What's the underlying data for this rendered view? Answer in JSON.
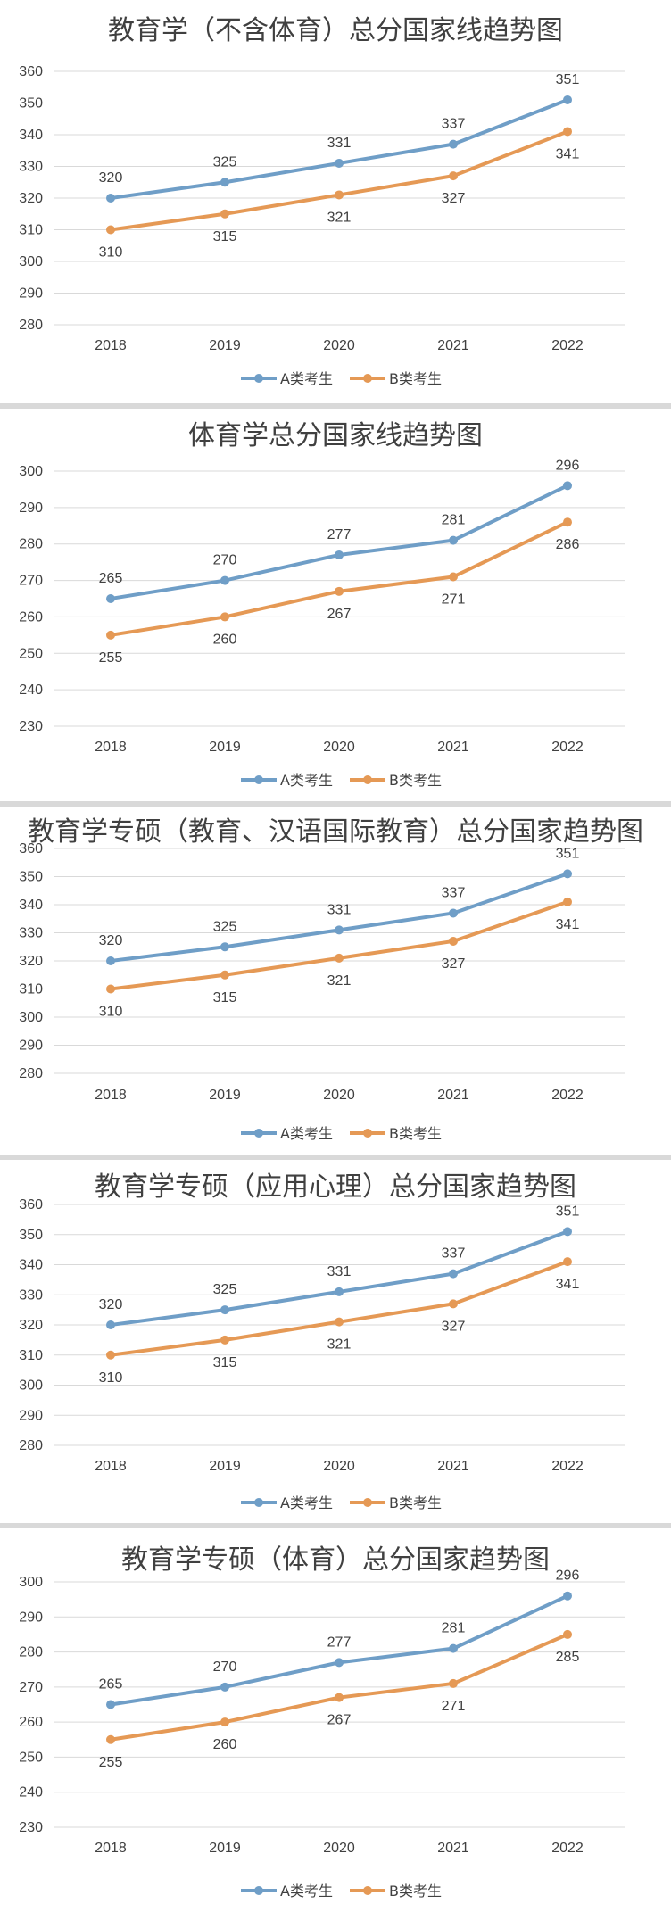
{
  "colors": {
    "series_a": "#6f9ec7",
    "series_b": "#e59955",
    "grid": "#d9d9d9",
    "text": "#404040"
  },
  "chart_data": [
    {
      "type": "line",
      "title": "教育学（不含体育）总分国家线趋势图",
      "categories": [
        "2018",
        "2019",
        "2020",
        "2021",
        "2022"
      ],
      "ylim": [
        280,
        360
      ],
      "yticks": [
        "280",
        "290",
        "300",
        "310",
        "320",
        "330",
        "340",
        "350",
        "360"
      ],
      "grid": true,
      "legend": "bottom",
      "series": [
        {
          "name": "A类考生",
          "values": [
            320,
            325,
            331,
            337,
            351
          ]
        },
        {
          "name": "B类考生",
          "values": [
            310,
            315,
            321,
            327,
            341
          ]
        }
      ]
    },
    {
      "type": "line",
      "title": "体育学总分国家线趋势图",
      "categories": [
        "2018",
        "2019",
        "2020",
        "2021",
        "2022"
      ],
      "ylim": [
        230,
        300
      ],
      "yticks": [
        "230",
        "240",
        "250",
        "260",
        "270",
        "280",
        "290",
        "300"
      ],
      "grid": true,
      "legend": "bottom",
      "series": [
        {
          "name": "A类考生",
          "values": [
            265,
            270,
            277,
            281,
            296
          ]
        },
        {
          "name": "B类考生",
          "values": [
            255,
            260,
            267,
            271,
            286
          ]
        }
      ]
    },
    {
      "type": "line",
      "title": "教育学专硕（教育、汉语国际教育）总分国家趋势图",
      "categories": [
        "2018",
        "2019",
        "2020",
        "2021",
        "2022"
      ],
      "ylim": [
        280,
        360
      ],
      "yticks": [
        "280",
        "290",
        "300",
        "310",
        "320",
        "330",
        "340",
        "350",
        "360"
      ],
      "grid": true,
      "legend": "bottom",
      "series": [
        {
          "name": "A类考生",
          "values": [
            320,
            325,
            331,
            337,
            351
          ]
        },
        {
          "name": "B类考生",
          "values": [
            310,
            315,
            321,
            327,
            341
          ]
        }
      ]
    },
    {
      "type": "line",
      "title": "教育学专硕（应用心理）总分国家趋势图",
      "categories": [
        "2018",
        "2019",
        "2020",
        "2021",
        "2022"
      ],
      "ylim": [
        280,
        360
      ],
      "yticks": [
        "280",
        "290",
        "300",
        "310",
        "320",
        "330",
        "340",
        "350",
        "360"
      ],
      "grid": true,
      "legend": "bottom",
      "series": [
        {
          "name": "A类考生",
          "values": [
            320,
            325,
            331,
            337,
            351
          ]
        },
        {
          "name": "B类考生",
          "values": [
            310,
            315,
            321,
            327,
            341
          ]
        }
      ]
    },
    {
      "type": "line",
      "title": "教育学专硕（体育）总分国家趋势图",
      "categories": [
        "2018",
        "2019",
        "2020",
        "2021",
        "2022"
      ],
      "ylim": [
        230,
        300
      ],
      "yticks": [
        "230",
        "240",
        "250",
        "260",
        "270",
        "280",
        "290",
        "300"
      ],
      "grid": true,
      "legend": "bottom",
      "series": [
        {
          "name": "A类考生",
          "values": [
            265,
            270,
            277,
            281,
            296
          ]
        },
        {
          "name": "B类考生",
          "values": [
            255,
            260,
            267,
            271,
            285
          ]
        }
      ]
    }
  ]
}
